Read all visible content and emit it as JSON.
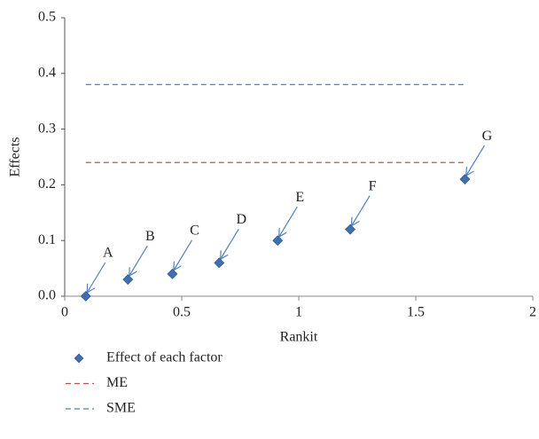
{
  "chart_data": {
    "type": "scatter",
    "xlabel": "Rankit",
    "ylabel": "Effects",
    "xlim": [
      0,
      2
    ],
    "ylim": [
      0,
      0.5
    ],
    "xticks": [
      0,
      0.5,
      1,
      1.5,
      2
    ],
    "yticks": [
      {
        "value": 0,
        "label": "0.0"
      },
      0.1,
      0.2,
      0.3,
      0.4,
      0.5
    ],
    "grid": false,
    "legend": "bottom",
    "series": [
      {
        "name": "Effect of each factor",
        "type": "scatter",
        "color": "#3f6fae",
        "x": [
          0.09,
          0.27,
          0.46,
          0.66,
          0.91,
          1.22,
          1.71
        ],
        "values": [
          0,
          0.03,
          0.04,
          0.06,
          0.1,
          0.12,
          0.21
        ],
        "point_labels": [
          "A",
          "B",
          "C",
          "D",
          "E",
          "F",
          "G"
        ]
      },
      {
        "name": "ME",
        "type": "line",
        "style": "dashed",
        "color": "#c0504d",
        "x": [
          0.09,
          1.71
        ],
        "values": [
          0.24,
          0.24
        ]
      },
      {
        "name": "SME",
        "type": "line",
        "style": "dashed",
        "color": "#4f81bd",
        "x": [
          0.09,
          1.71
        ],
        "values": [
          0.38,
          0.38
        ]
      }
    ]
  }
}
